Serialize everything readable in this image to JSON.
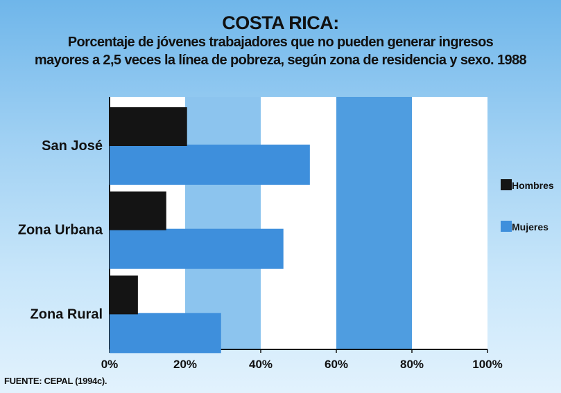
{
  "chart_data": {
    "type": "bar",
    "orientation": "horizontal",
    "title": "COSTA RICA:",
    "subtitle_lines": [
      "Porcentaje de jóvenes trabajadores que no pueden generar ingresos",
      "mayores a 2,5 veces la línea de pobreza, según zona de residencia y sexo. 1988"
    ],
    "categories": [
      "San José",
      "Zona Urbana",
      "Zona Rural"
    ],
    "series": [
      {
        "name": "Hombres",
        "values": [
          20.5,
          15,
          7.5
        ],
        "color": "#141414"
      },
      {
        "name": "Mujeres",
        "values": [
          53,
          46,
          29.5
        ],
        "color": "#3e8fdc"
      }
    ],
    "xlim": [
      0,
      100
    ],
    "x_ticks": [
      "0%",
      "20%",
      "40%",
      "60%",
      "80%",
      "100%"
    ],
    "legend_position": "right",
    "background_bands": [
      "#ffffff",
      "#8cc4ee",
      "#ffffff",
      "#4f9de0",
      "#ffffff"
    ]
  },
  "source": "FUENTE: CEPAL (1994c)."
}
